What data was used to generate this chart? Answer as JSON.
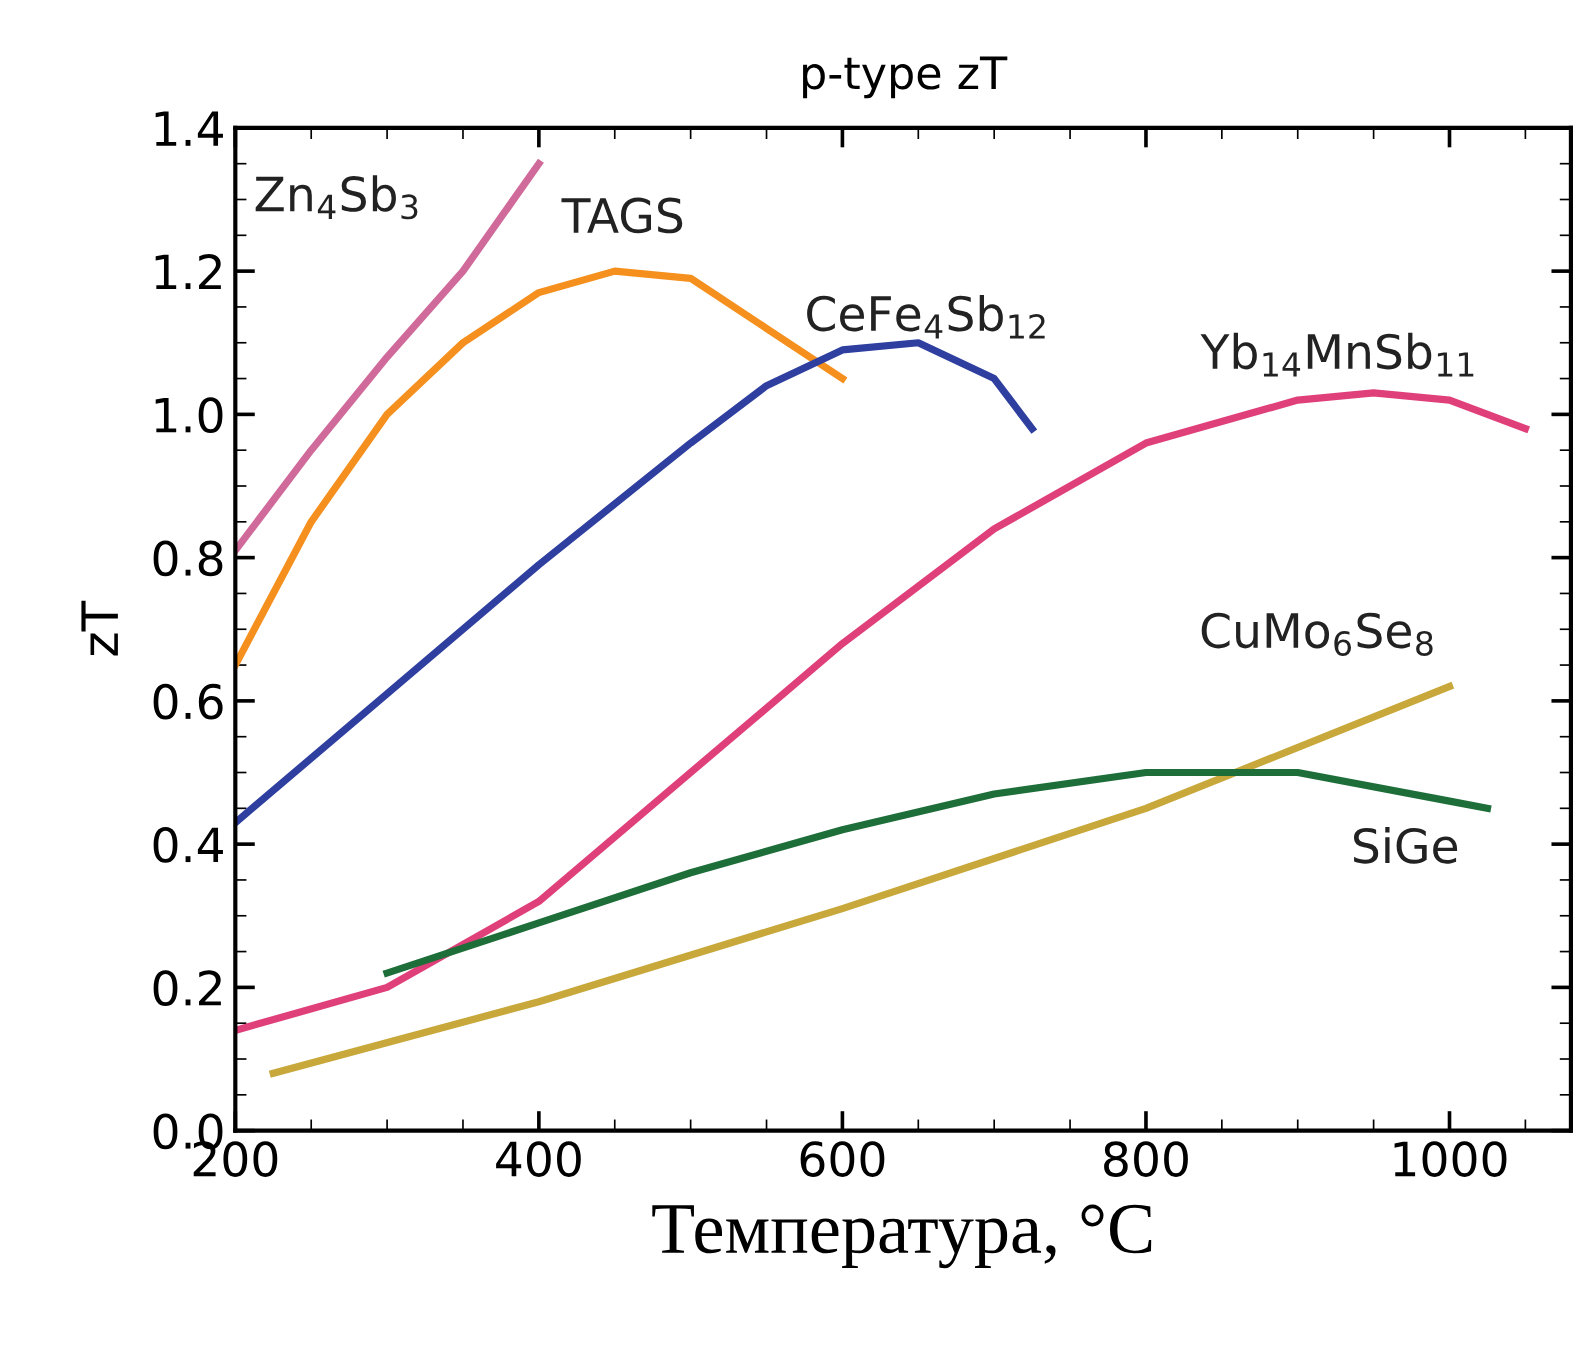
{
  "chart_data": {
    "type": "line",
    "title": "p-type zT",
    "xlabel": "Температура, °C",
    "ylabel": "zT",
    "xlim": [
      200,
      1080
    ],
    "xticks": [
      200,
      400,
      600,
      800,
      1000
    ],
    "ylim": [
      0.0,
      1.4
    ],
    "yticks": [
      {
        "value": 0.0,
        "label": "0.0"
      },
      {
        "value": 0.2,
        "label": "0.2"
      },
      {
        "value": 0.4,
        "label": "0.4"
      },
      {
        "value": 0.6,
        "label": "0.6"
      },
      {
        "value": 0.8,
        "label": "0.8"
      },
      {
        "value": 1.0,
        "label": "1.0"
      },
      {
        "value": 1.2,
        "label": "1.2"
      },
      {
        "value": 1.4,
        "label": "1.4"
      }
    ],
    "grid": false,
    "legend": false,
    "marker": "none",
    "line_style": "solid",
    "series": [
      {
        "name": "Zn$_{4}$Sb$_{3}$",
        "color": "#d06a9a",
        "x": [
          200,
          250,
          300,
          350,
          400
        ],
        "values": [
          0.81,
          0.95,
          1.08,
          1.2,
          1.35
        ]
      },
      {
        "name": "TAGS",
        "color": "#f5901e",
        "x": [
          200,
          250,
          300,
          350,
          400,
          450,
          500,
          550,
          600
        ],
        "values": [
          0.65,
          0.85,
          1.0,
          1.1,
          1.17,
          1.2,
          1.19,
          1.12,
          1.05
        ]
      },
      {
        "name": "CeFe$_{4}$Sb$_{12}$",
        "color": "#2e3fa0",
        "x": [
          200,
          300,
          400,
          500,
          550,
          600,
          650,
          700,
          725
        ],
        "values": [
          0.43,
          0.61,
          0.79,
          0.96,
          1.04,
          1.09,
          1.1,
          1.05,
          0.98
        ]
      },
      {
        "name": "Yb$_{14}$MnSb$_{11}$",
        "color": "#e0407a",
        "x": [
          200,
          300,
          400,
          500,
          600,
          700,
          800,
          900,
          950,
          1000,
          1050
        ],
        "values": [
          0.14,
          0.2,
          0.32,
          0.5,
          0.68,
          0.84,
          0.96,
          1.02,
          1.03,
          1.02,
          0.98
        ]
      },
      {
        "name": "CuMo$_{6}$Se$_{8}$",
        "color": "#c8a83a",
        "x": [
          225,
          400,
          600,
          800,
          1000
        ],
        "values": [
          0.08,
          0.18,
          0.31,
          0.45,
          0.62
        ]
      },
      {
        "name": "SiGe",
        "color": "#1e6e3a",
        "x": [
          300,
          400,
          500,
          600,
          700,
          800,
          900,
          1000,
          1025
        ],
        "values": [
          0.22,
          0.29,
          0.36,
          0.42,
          0.47,
          0.5,
          0.5,
          0.46,
          0.45
        ]
      }
    ]
  }
}
